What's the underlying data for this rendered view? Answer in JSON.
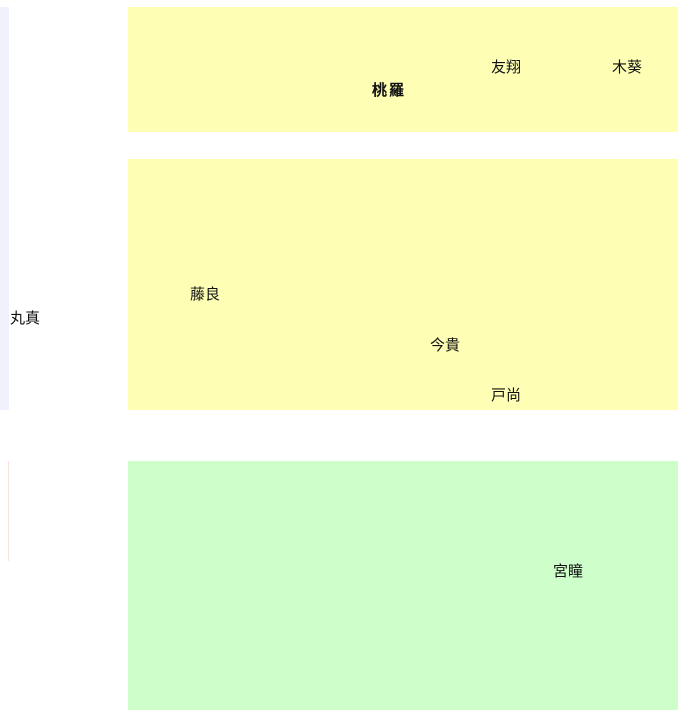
{
  "colors": {
    "band_yellow": "#feffb5",
    "band_green": "#ceffca",
    "strip_lavender": "#f1f1fd",
    "strip_pink": "#fbe0e0"
  },
  "regions": {
    "top": {
      "labels": [
        "友翔",
        "木葵"
      ],
      "overlapping": [
        "桃",
        "羅"
      ]
    },
    "middle": {
      "side_label": "丸真",
      "labels": [
        "藤良",
        "今貴",
        "戸尚"
      ]
    },
    "bottom": {
      "labels": [
        "宮瞳"
      ]
    }
  }
}
